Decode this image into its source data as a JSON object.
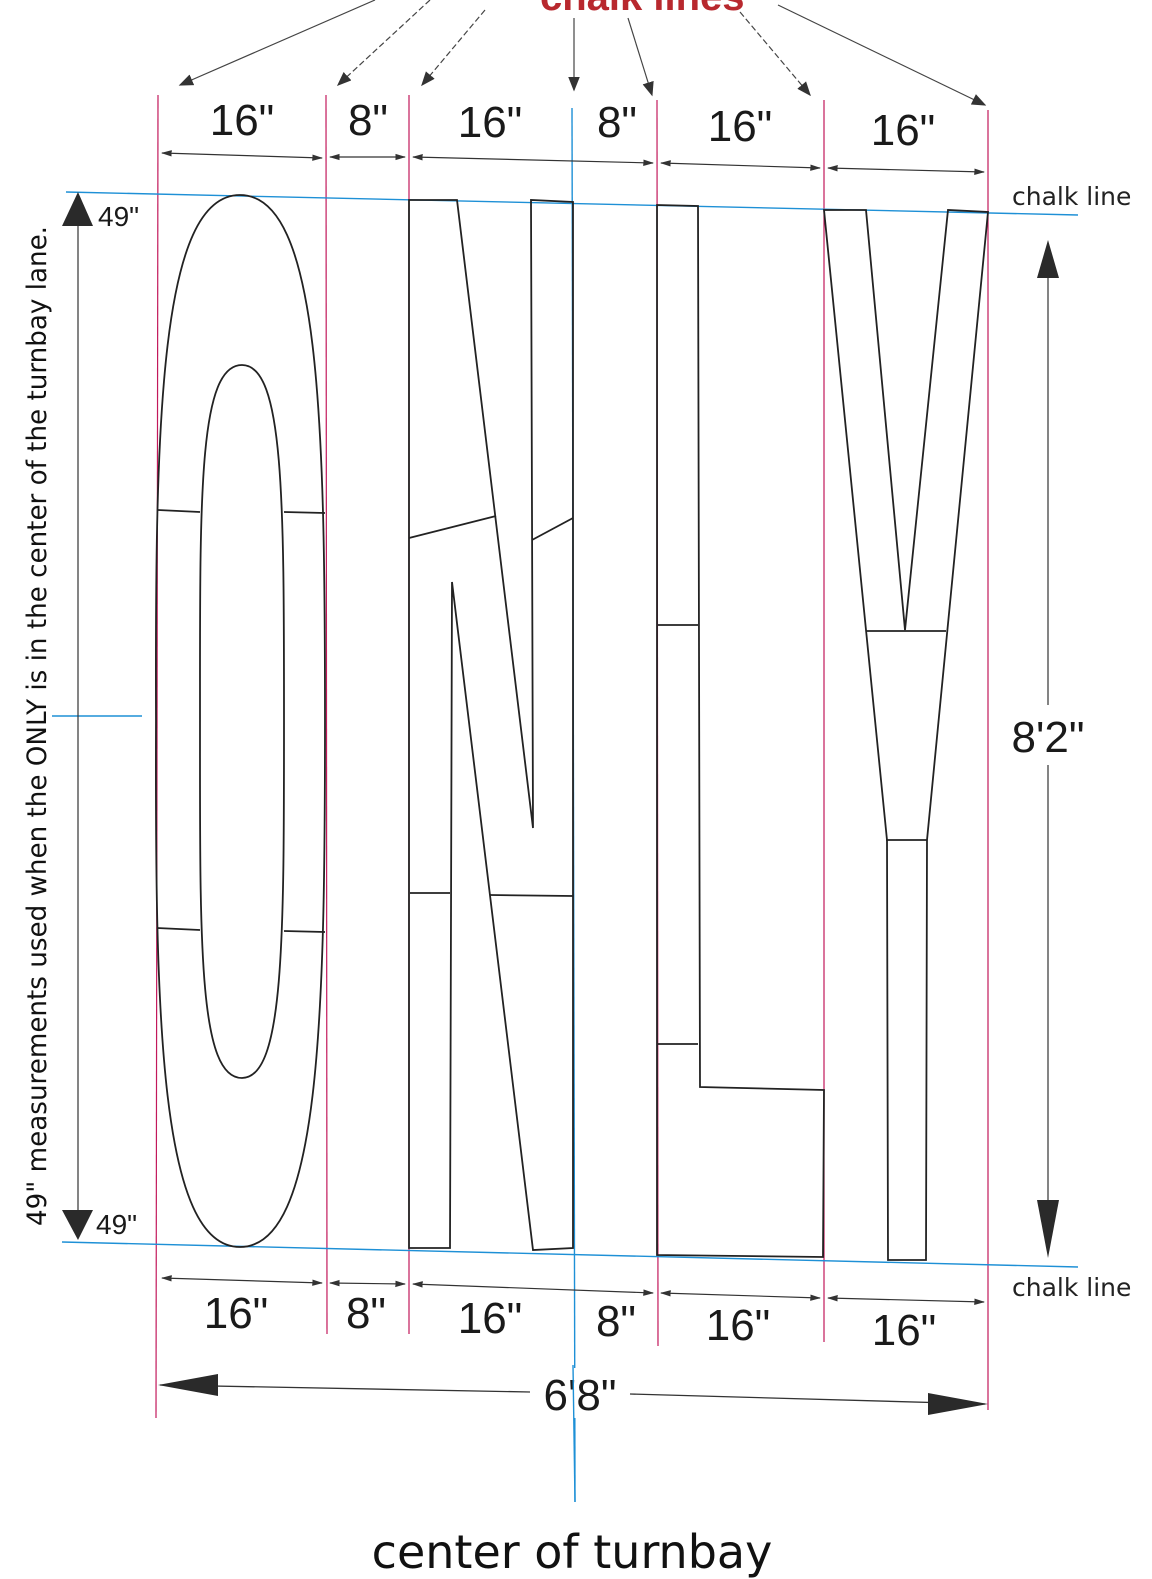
{
  "header": {
    "label": "chalk lines"
  },
  "columns_top": [
    "16\"",
    "8\"",
    "16\"",
    "8\"",
    "16\"",
    "16\""
  ],
  "columns_bottom": [
    "16\"",
    "8\"",
    "16\"",
    "8\"",
    "16\"",
    "16\""
  ],
  "left_markers": {
    "top": "49\"",
    "bottom": "49\""
  },
  "right_labels": {
    "chalk_top": "chalk line",
    "chalk_bottom": "chalk line",
    "height": "8'2\""
  },
  "total_width": "6'8\"",
  "side_note": "49\" measurements used when the ONLY is in the center of the turnbay lane.",
  "footer": {
    "center_label": "center of turnbay"
  },
  "colors": {
    "guide_line": "#c2185b",
    "chalk_line": "#1e90d6",
    "ink": "#222222",
    "label_red": "#b8282e"
  }
}
